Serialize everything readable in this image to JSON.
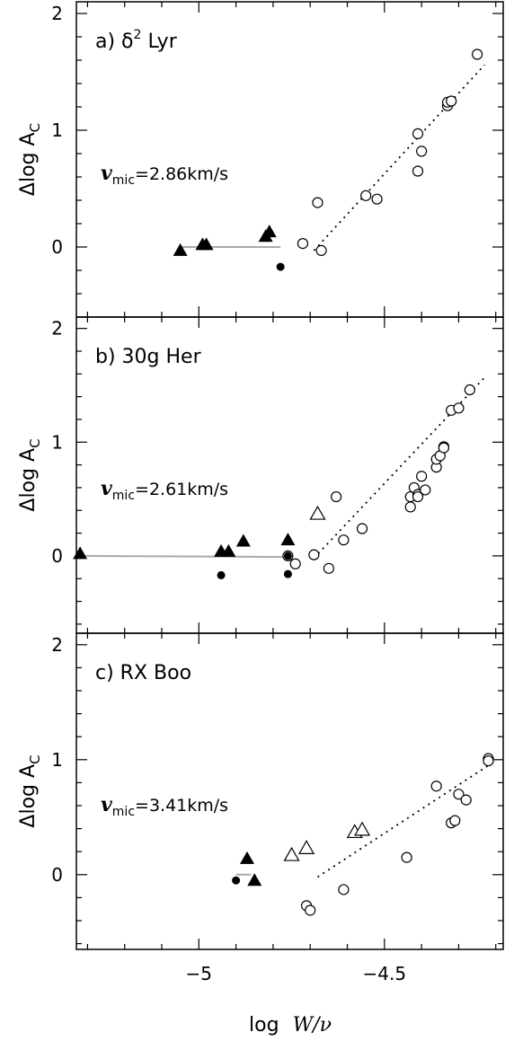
{
  "figure": {
    "xlabel": "log W/ν",
    "xlabel_prefix": "log",
    "xlabel_var": "W/ν",
    "ylabel_prefix": "Δlog A",
    "ylabel_sub": "C",
    "vmic_prefix": "v",
    "vmic_sub": "mic",
    "shared_xlim": [
      -5.33,
      -4.18
    ],
    "x_ticks": [
      -5,
      -4.5
    ],
    "x_tick_labels": [
      "−5",
      "−4.5"
    ],
    "colors": {
      "axis": "#000000",
      "fit_line": "#aaaaaa",
      "marker": "#000000"
    }
  },
  "chart_data": [
    {
      "type": "scatter",
      "panel_label": "a) δ² Lyr",
      "label_text": "a) δ",
      "label_sup": "2",
      "label_tail": " Lyr",
      "vmic_value": "=2.86km/s",
      "xlim": [
        -5.33,
        -4.18
      ],
      "ylim": [
        -0.6,
        2.1
      ],
      "y_ticks": [
        0,
        1,
        2
      ],
      "y_tick_labels": [
        "0",
        "1",
        "2"
      ],
      "open_circles": [
        [
          -4.72,
          0.03
        ],
        [
          -4.68,
          0.38
        ],
        [
          -4.67,
          -0.03
        ],
        [
          -4.55,
          0.44
        ],
        [
          -4.52,
          0.41
        ],
        [
          -4.41,
          0.97
        ],
        [
          -4.41,
          0.65
        ],
        [
          -4.4,
          0.82
        ],
        [
          -4.33,
          1.21
        ],
        [
          -4.33,
          1.24
        ],
        [
          -4.32,
          1.25
        ],
        [
          -4.25,
          1.65
        ]
      ],
      "open_triangles": [],
      "filled_triangles": [
        [
          -5.05,
          -0.03
        ],
        [
          -4.99,
          0.02
        ],
        [
          -4.98,
          0.02
        ],
        [
          -4.82,
          0.09
        ],
        [
          -4.81,
          0.13
        ]
      ],
      "filled_circles": [
        [
          -4.78,
          -0.17
        ]
      ],
      "fit_line": [
        [
          -5.05,
          0.0
        ],
        [
          -4.78,
          0.0
        ]
      ],
      "dotted_line": [
        [
          -4.69,
          -0.03
        ],
        [
          -4.23,
          1.56
        ]
      ]
    },
    {
      "type": "scatter",
      "panel_label": "b) 30g Her",
      "label_text": "b) 30g Her",
      "label_sup": "",
      "label_tail": "",
      "vmic_value": "=2.61km/s",
      "xlim": [
        -5.33,
        -4.18
      ],
      "ylim": [
        -0.68,
        2.1
      ],
      "y_ticks": [
        0,
        1,
        2
      ],
      "y_tick_labels": [
        "0",
        "1",
        "2"
      ],
      "open_circles": [
        [
          -4.76,
          0.0
        ],
        [
          -4.74,
          -0.07
        ],
        [
          -4.69,
          0.01
        ],
        [
          -4.65,
          -0.11
        ],
        [
          -4.63,
          0.52
        ],
        [
          -4.61,
          0.14
        ],
        [
          -4.56,
          0.24
        ],
        [
          -4.43,
          0.52
        ],
        [
          -4.43,
          0.43
        ],
        [
          -4.42,
          0.6
        ],
        [
          -4.41,
          0.54
        ],
        [
          -4.41,
          0.52
        ],
        [
          -4.4,
          0.7
        ],
        [
          -4.39,
          0.58
        ],
        [
          -4.36,
          0.78
        ],
        [
          -4.36,
          0.85
        ],
        [
          -4.35,
          0.88
        ],
        [
          -4.34,
          0.96
        ],
        [
          -4.34,
          0.95
        ],
        [
          -4.32,
          1.28
        ],
        [
          -4.3,
          1.3
        ],
        [
          -4.27,
          1.46
        ]
      ],
      "open_triangles": [
        [
          -4.68,
          0.37
        ]
      ],
      "filled_triangles": [
        [
          -5.32,
          0.02
        ],
        [
          -4.94,
          0.04
        ],
        [
          -4.92,
          0.04
        ],
        [
          -4.88,
          0.13
        ],
        [
          -4.76,
          0.14
        ]
      ],
      "filled_circles": [
        [
          -4.94,
          -0.17
        ],
        [
          -4.76,
          -0.16
        ],
        [
          -4.76,
          0.0
        ]
      ],
      "fit_line": [
        [
          -5.32,
          0.0
        ],
        [
          -4.76,
          -0.01
        ]
      ],
      "dotted_line": [
        [
          -4.69,
          -0.02
        ],
        [
          -4.23,
          1.57
        ]
      ]
    },
    {
      "type": "scatter",
      "panel_label": "c) RX Boo",
      "label_text": "c) RX Boo",
      "label_sup": "",
      "label_tail": "",
      "vmic_value": "=3.41km/s",
      "xlim": [
        -5.33,
        -4.18
      ],
      "ylim": [
        -0.65,
        2.1
      ],
      "y_ticks": [
        0,
        1,
        2
      ],
      "y_tick_labels": [
        "0",
        "1",
        "2"
      ],
      "open_circles": [
        [
          -4.71,
          -0.27
        ],
        [
          -4.7,
          -0.31
        ],
        [
          -4.61,
          -0.13
        ],
        [
          -4.44,
          0.15
        ],
        [
          -4.36,
          0.77
        ],
        [
          -4.32,
          0.45
        ],
        [
          -4.31,
          0.47
        ],
        [
          -4.3,
          0.7
        ],
        [
          -4.28,
          0.65
        ],
        [
          -4.22,
          1.01
        ],
        [
          -4.22,
          0.99
        ]
      ],
      "open_triangles": [
        [
          -4.75,
          0.17
        ],
        [
          -4.71,
          0.23
        ],
        [
          -4.58,
          0.37
        ],
        [
          -4.56,
          0.39
        ]
      ],
      "filled_triangles": [
        [
          -4.87,
          0.14
        ],
        [
          -4.85,
          -0.05
        ]
      ],
      "filled_circles": [
        [
          -4.9,
          -0.05
        ]
      ],
      "fit_line": [
        [
          -4.9,
          0.0
        ],
        [
          -4.86,
          0.0
        ]
      ],
      "dotted_line": [
        [
          -4.68,
          -0.02
        ],
        [
          -4.22,
          0.95
        ]
      ]
    }
  ]
}
